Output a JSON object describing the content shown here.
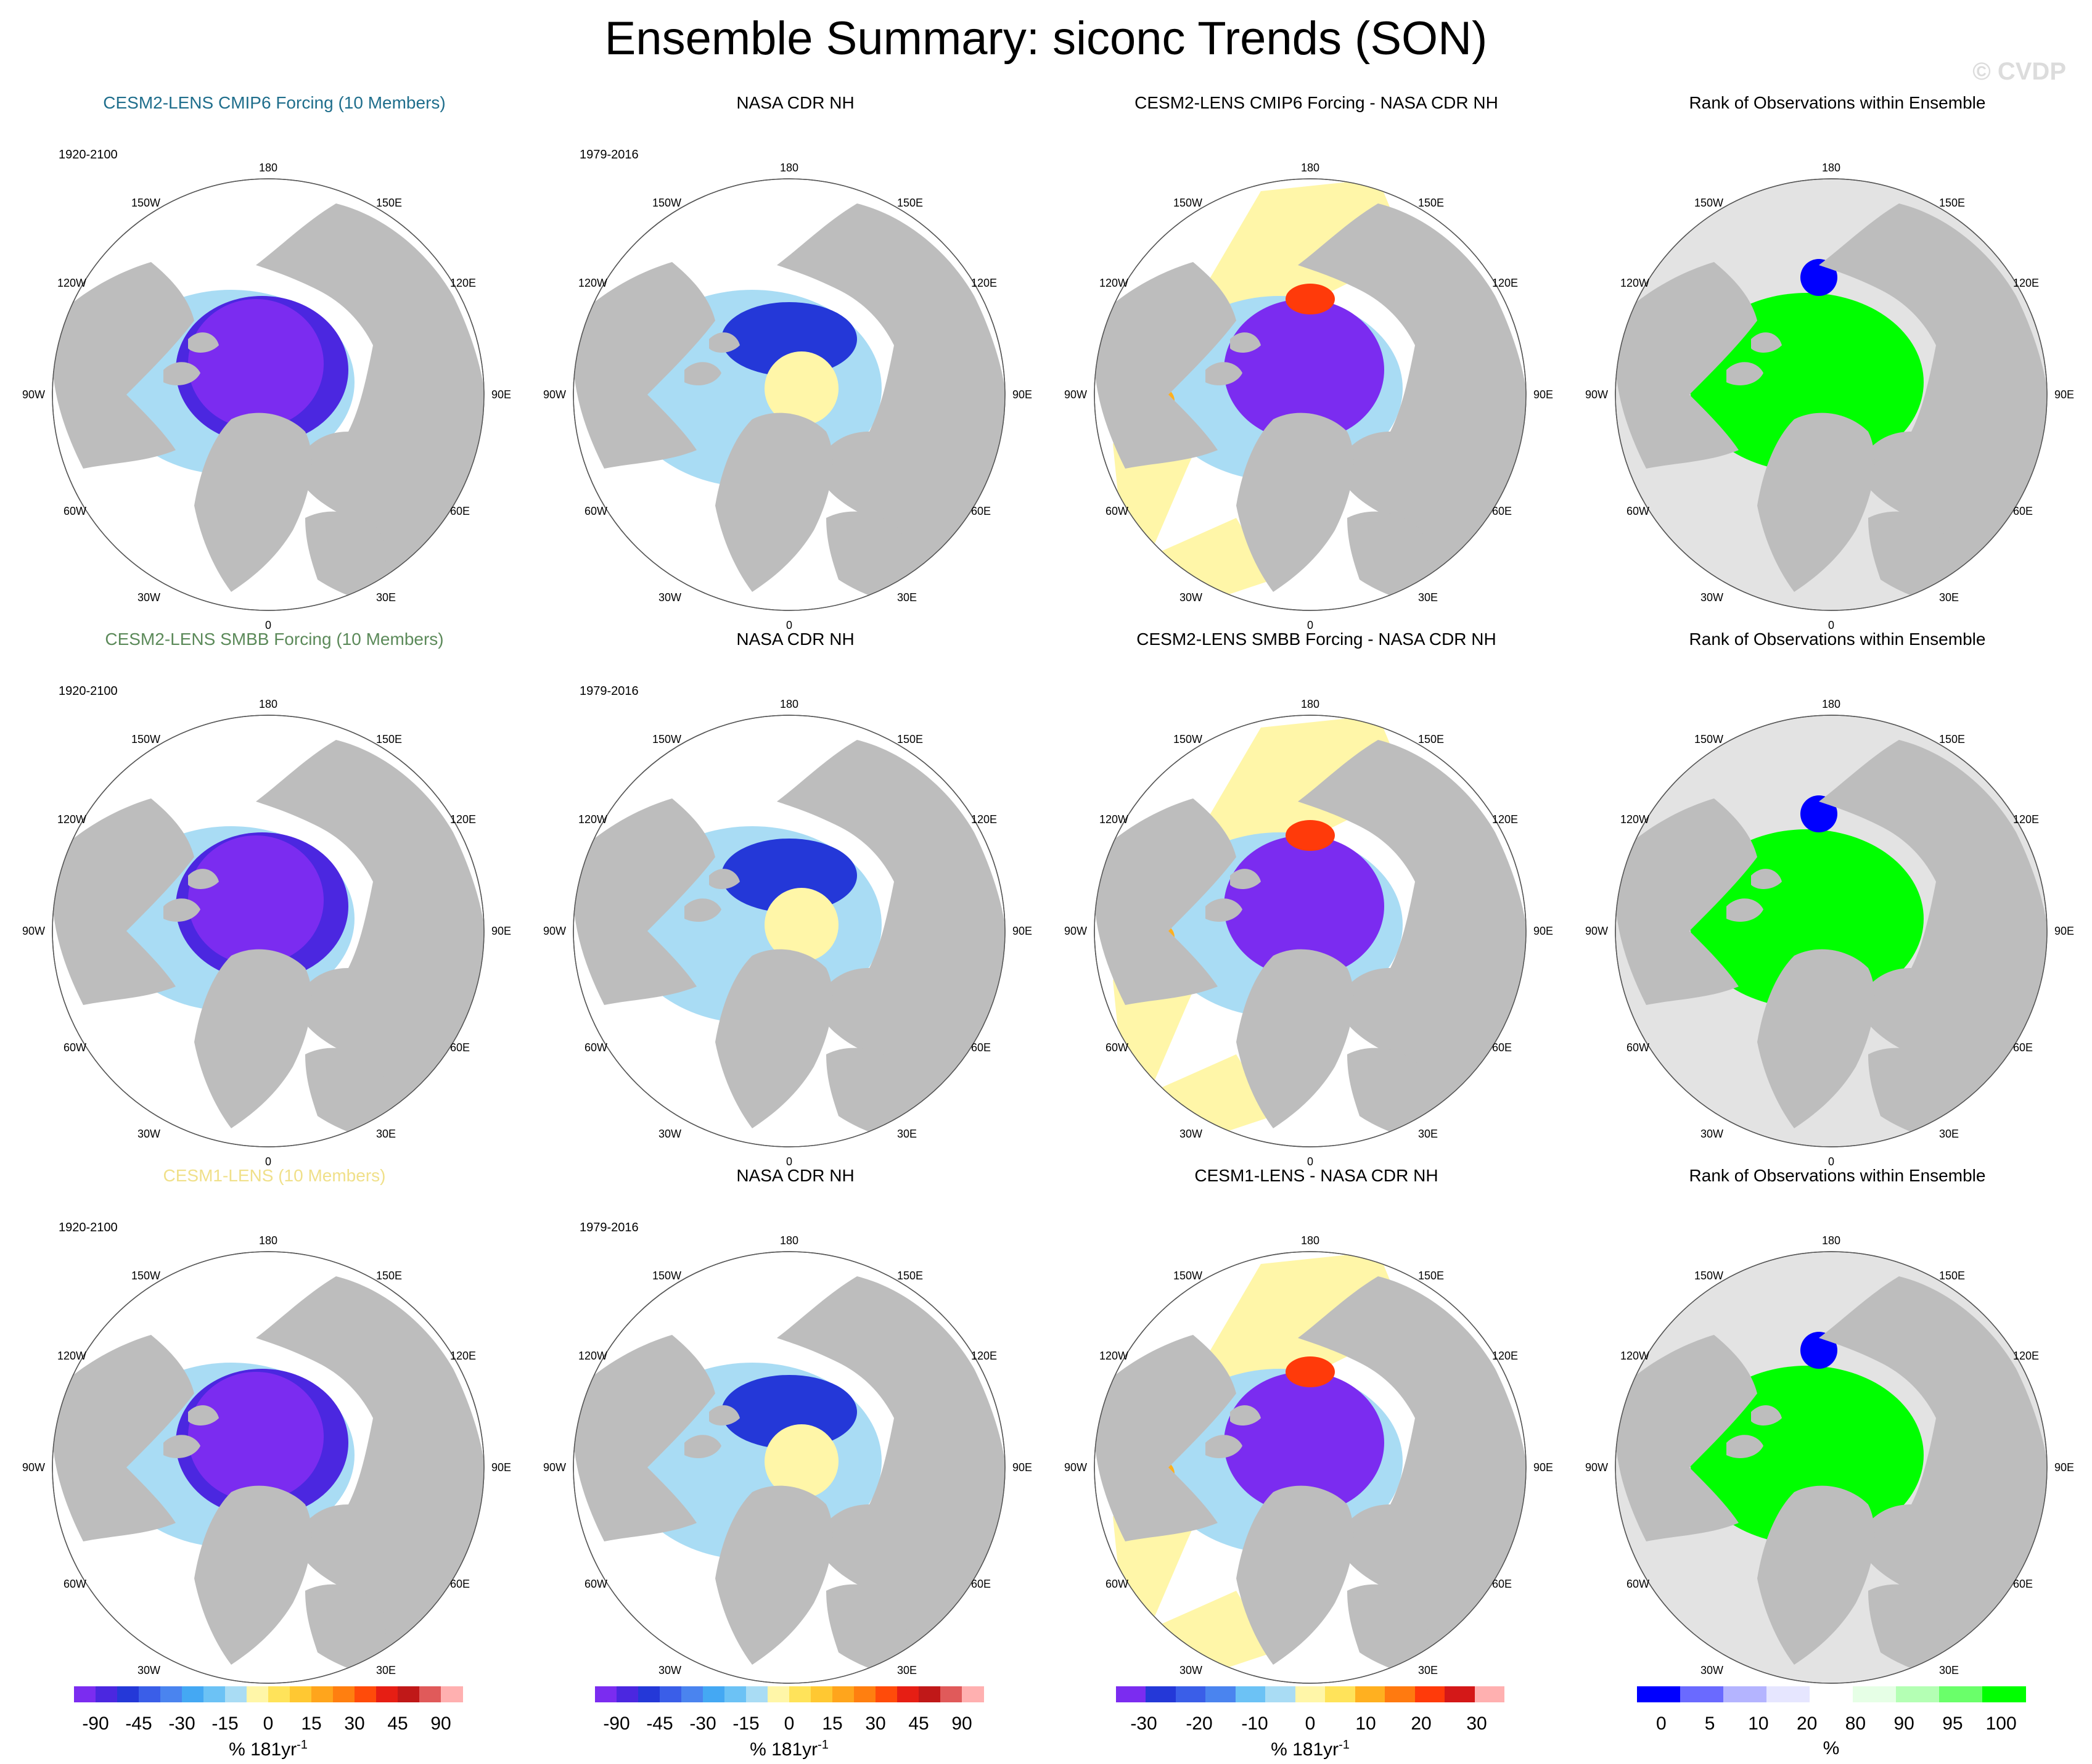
{
  "title": "Ensemble Summary: siconc Trends (SON)",
  "watermark": "© CVDP",
  "colors": {
    "land": "#bdbdbd",
    "background_disk": "#ffffff",
    "rank_background": "#e3e3e3",
    "model_title_colors": [
      "#1f6e8c",
      "#5c8a5a",
      "#f0e08a"
    ],
    "trend": [
      "#7b2cf0",
      "#4b27e0",
      "#2438d8",
      "#3a5ee8",
      "#4a84ef",
      "#44a8f3",
      "#6cc2f5",
      "#a9dcf4",
      "#fff6a8",
      "#ffe35a",
      "#ffc832",
      "#ffa51c",
      "#ff7f10",
      "#ff4b0a",
      "#e61e14",
      "#c01818",
      "#e05a5a",
      "#ffb0b0"
    ],
    "diff": [
      "#7b2cf0",
      "#2438d8",
      "#3a5ee8",
      "#4a84ef",
      "#6cc2f5",
      "#a9dcf4",
      "#fff6a8",
      "#ffe35a",
      "#ffb020",
      "#ff7a10",
      "#ff3a0a",
      "#d41818",
      "#ffb0b0"
    ],
    "rank": [
      "#0000ff",
      "#6a6aff",
      "#b4b4ff",
      "#e6e6ff",
      "#ffffff",
      "#e6ffe6",
      "#b4ffb4",
      "#6aff6a",
      "#00ff00"
    ]
  },
  "rows": [
    {
      "model_title": "CESM2-LENS CMIP6 Forcing (10 Members)",
      "model_period": "1920-2100",
      "obs_title": "NASA CDR NH",
      "obs_period": "1979-2016",
      "diff_title": "CESM2-LENS CMIP6 Forcing - NASA CDR NH",
      "rank_title": "Rank of Observations within Ensemble"
    },
    {
      "model_title": "CESM2-LENS SMBB Forcing (10 Members)",
      "model_period": "1920-2100",
      "obs_title": "NASA CDR NH",
      "obs_period": "1979-2016",
      "diff_title": "CESM2-LENS SMBB Forcing - NASA CDR NH",
      "rank_title": "Rank of Observations within Ensemble"
    },
    {
      "model_title": "CESM1-LENS (10 Members)",
      "model_period": "1920-2100",
      "obs_title": "NASA CDR NH",
      "obs_period": "1979-2016",
      "diff_title": "CESM1-LENS - NASA CDR NH",
      "rank_title": "Rank of Observations within Ensemble"
    }
  ],
  "map_labels": {
    "top": "180",
    "bottom": "0",
    "left_mid": "90W",
    "right_mid": "90E",
    "upper_left": "150W",
    "upper_right": "150E",
    "left_upper": "120W",
    "right_upper": "120E",
    "left_lower": "60W",
    "right_lower": "60E",
    "lower_left": "30W",
    "lower_right": "30E"
  },
  "colorbars": {
    "model": {
      "ticks": [
        "-90",
        "-45",
        "-30",
        "-15",
        "0",
        "15",
        "30",
        "45",
        "90"
      ],
      "units": "% 181yr"
    },
    "obs": {
      "ticks": [
        "-90",
        "-45",
        "-30",
        "-15",
        "0",
        "15",
        "30",
        "45",
        "90"
      ],
      "units": "% 181yr"
    },
    "diff": {
      "ticks": [
        "-30",
        "-20",
        "-10",
        "0",
        "10",
        "20",
        "30"
      ],
      "units": "% 181yr"
    },
    "rank": {
      "ticks": [
        "0",
        "5",
        "10",
        "20",
        "80",
        "90",
        "95",
        "100"
      ],
      "units": "%"
    },
    "units_superscript": "-1"
  }
}
